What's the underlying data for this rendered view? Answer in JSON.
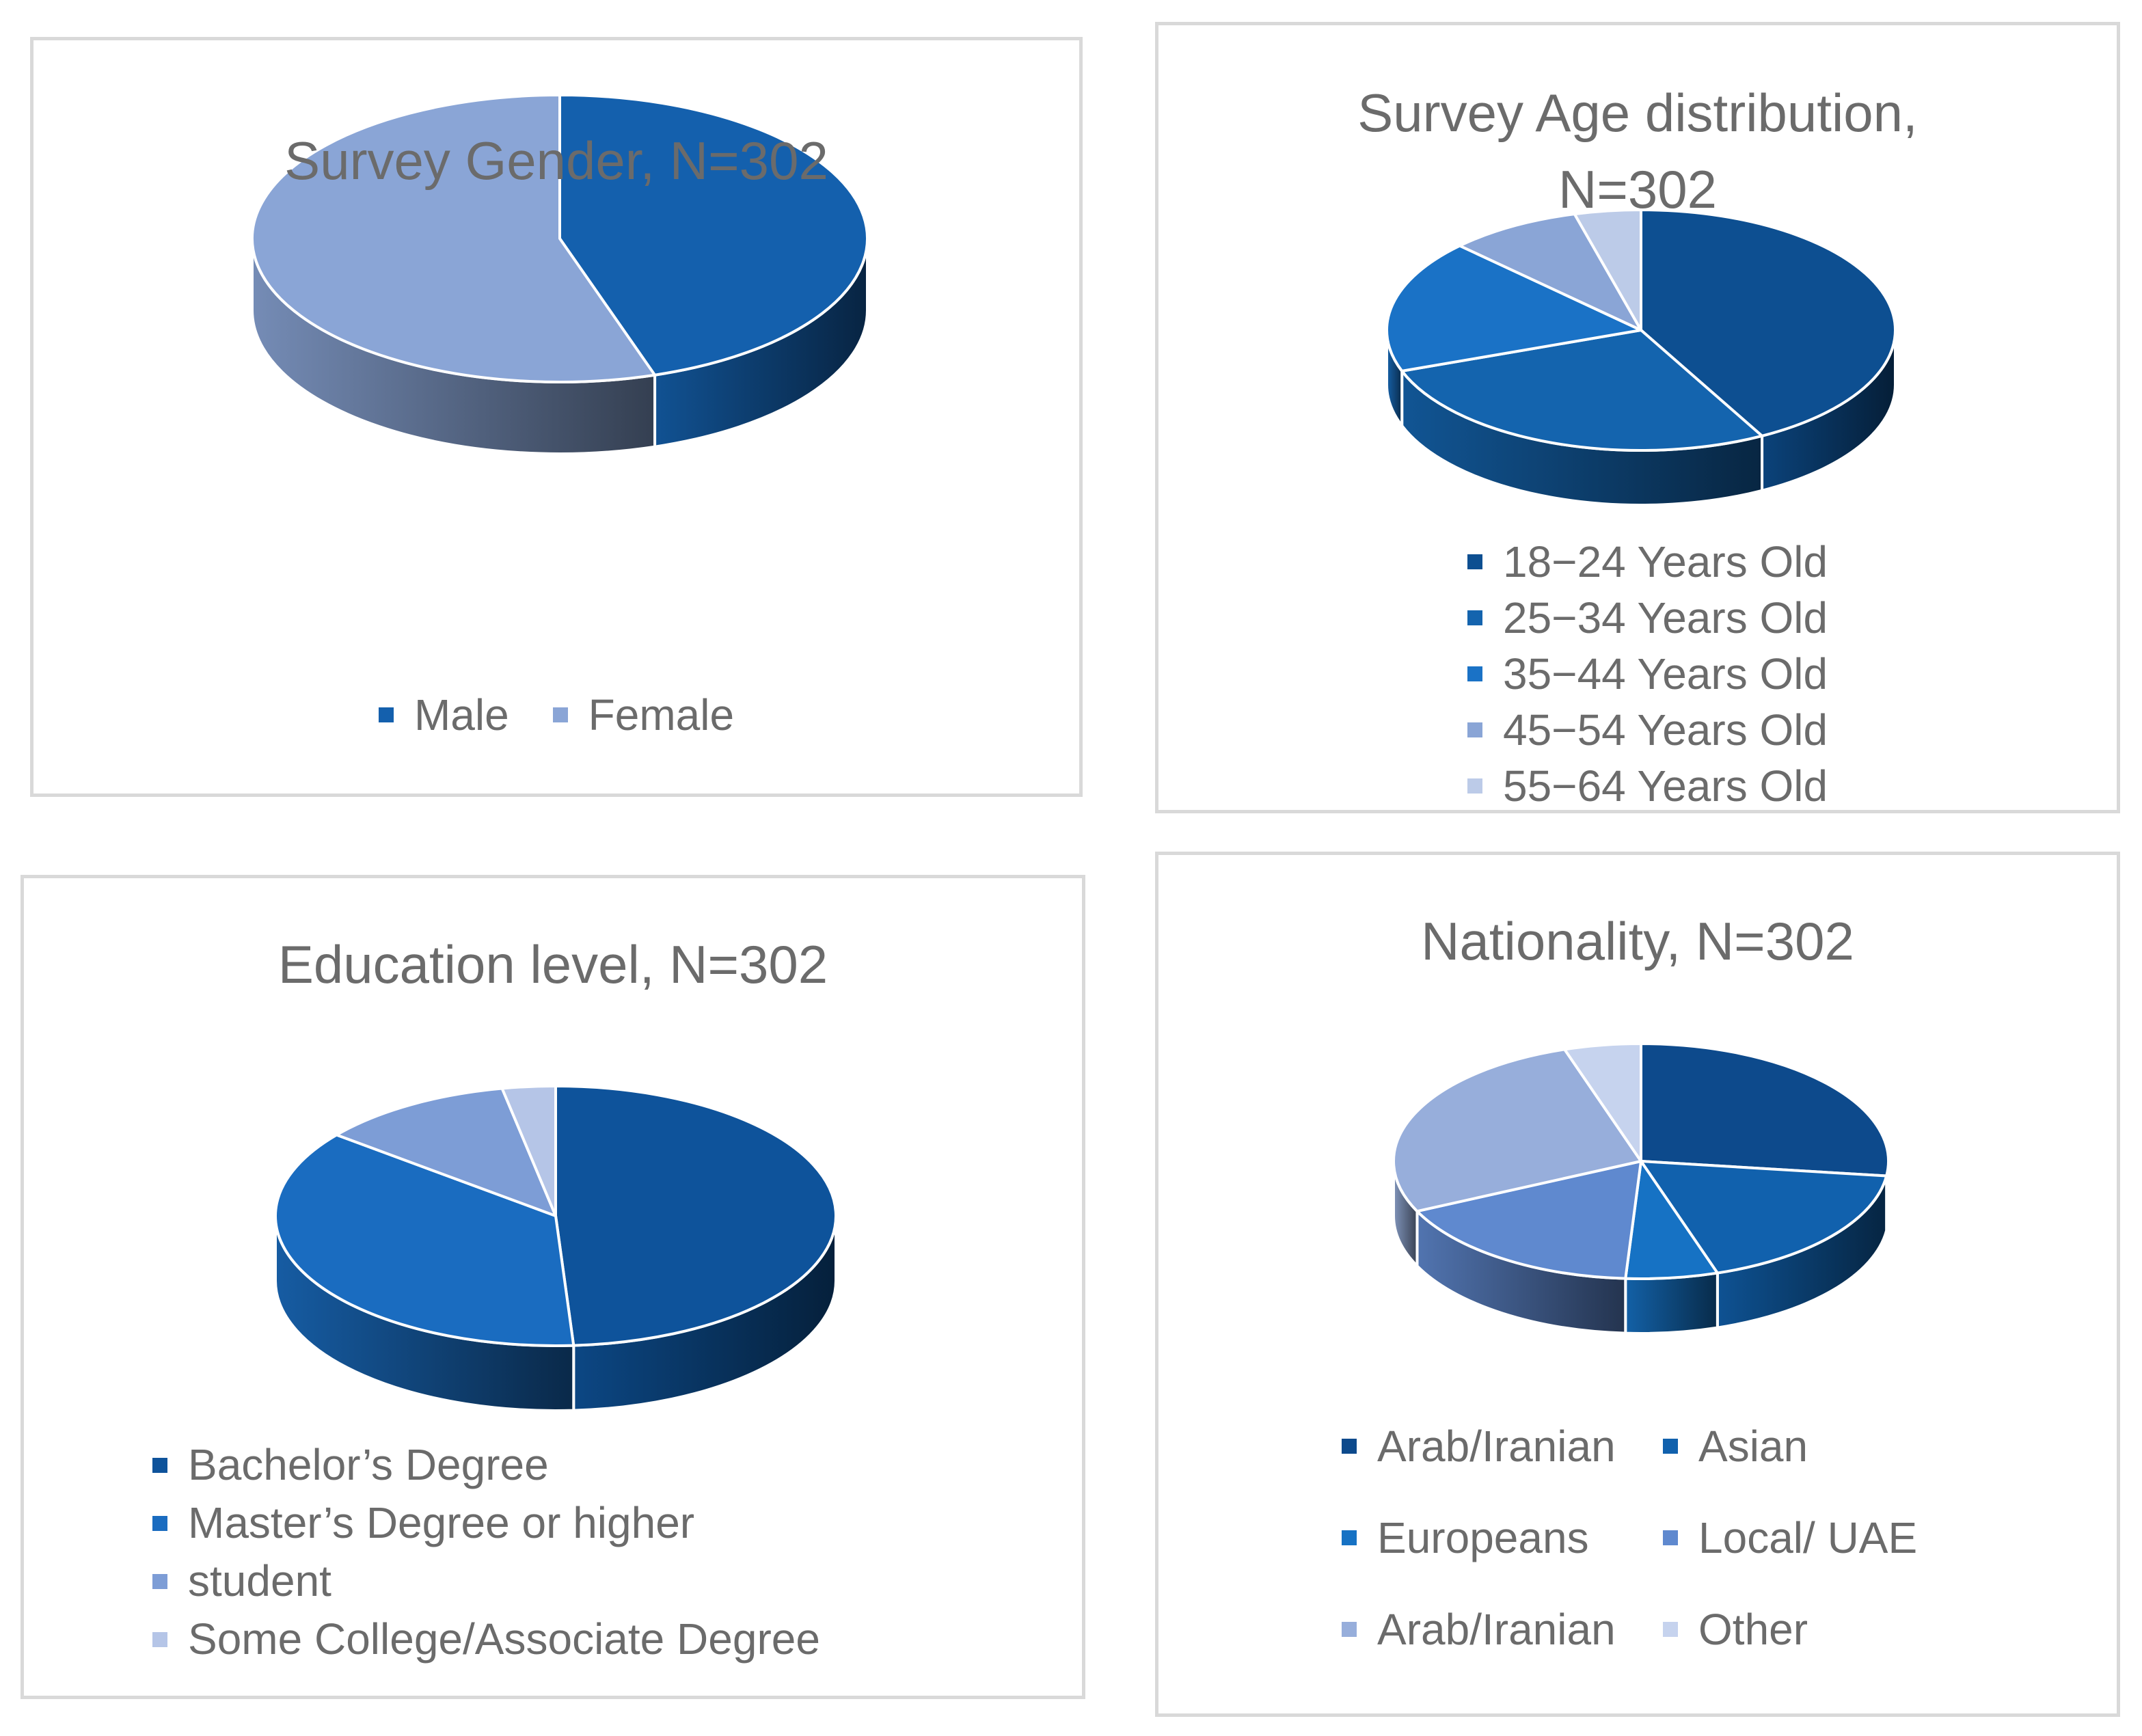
{
  "chart_data": [
    {
      "id": "gender",
      "type": "pie",
      "title": "Survey Gender, N=302",
      "categories": [
        "Male",
        "Female"
      ],
      "values": [
        45,
        55
      ],
      "colors": [
        "#1460ad",
        "#8aa5d6"
      ],
      "legend_position": "bottom"
    },
    {
      "id": "age",
      "type": "pie",
      "title": "Survey Age distribution,\nN=302",
      "categories": [
        "18−24 Years Old",
        "25−34 Years Old",
        "35−44 Years Old",
        "45−54 Years Old",
        "55−64 Years Old"
      ],
      "values": [
        40,
        26,
        17,
        8,
        4
      ],
      "colors": [
        "#0d4f91",
        "#1464ae",
        "#1a72c6",
        "#8aa5d6",
        "#bccbe8"
      ],
      "legend_position": "bottom"
    },
    {
      "id": "education",
      "type": "pie",
      "title": "Education level, N=302",
      "categories": [
        "Bachelor’s Degree",
        "Master’s Degree or higher",
        "student",
        "Some College/Associate Degree"
      ],
      "values": [
        48,
        36,
        11,
        3
      ],
      "colors": [
        "#0e539b",
        "#1a6cc0",
        "#7d9dd6",
        "#b5c5e7"
      ],
      "legend_position": "bottom"
    },
    {
      "id": "nationality",
      "type": "pie",
      "title": "Nationality, N=302",
      "categories": [
        "Arab/Iranian",
        "Asian",
        "Europeans",
        "Local/ UAE",
        "Arab/Iranian",
        "Other"
      ],
      "values": [
        27,
        18,
        6,
        17,
        27,
        5
      ],
      "colors": [
        "#0d4a8c",
        "#1161ad",
        "#1672c4",
        "#5f89cf",
        "#97aedb",
        "#c6d3ee"
      ],
      "legend_position": "bottom"
    }
  ]
}
